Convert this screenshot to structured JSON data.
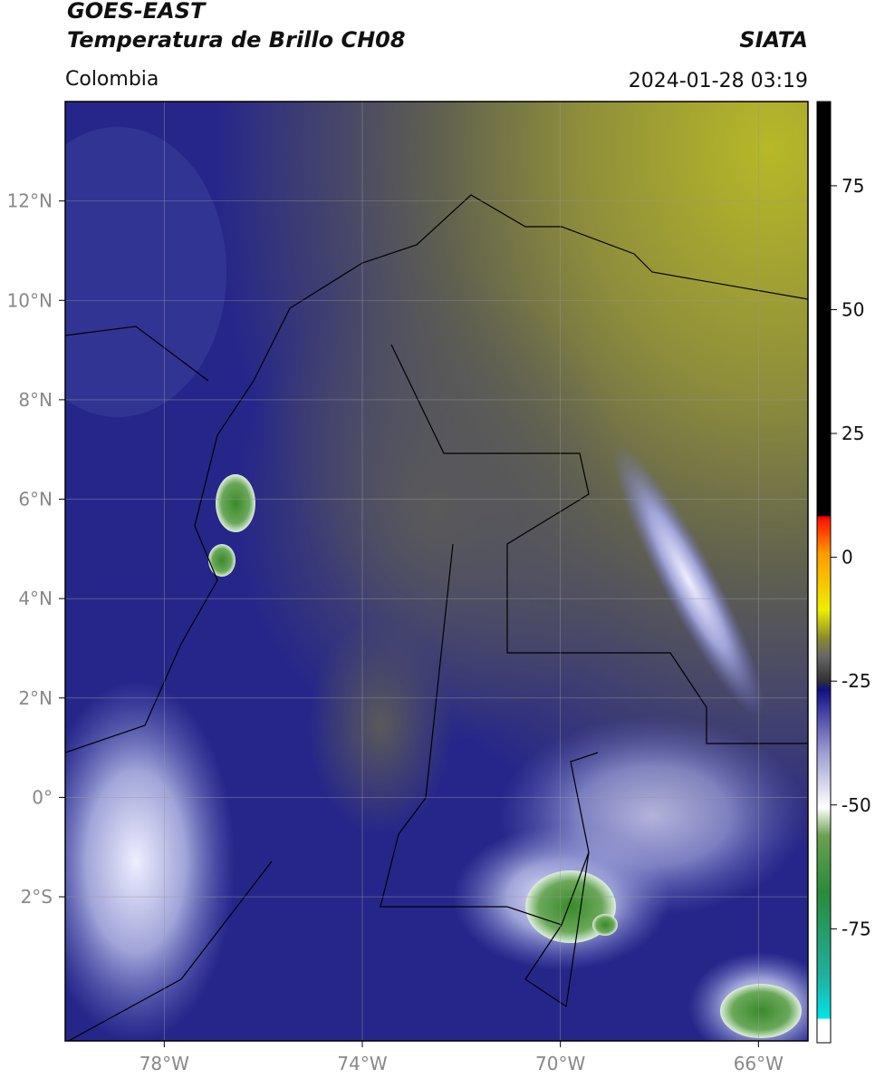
{
  "header": {
    "source": "GOES-EAST",
    "product": "Temperatura de Brillo CH08",
    "region": "Colombia",
    "org": "SIATA",
    "datetime": "2024-01-28 03:19"
  },
  "map": {
    "xlim": [
      -80,
      -65
    ],
    "ylim": [
      -4.9,
      14
    ],
    "xticks": [
      {
        "value": -78,
        "label": "78°W"
      },
      {
        "value": -74,
        "label": "74°W"
      },
      {
        "value": -70,
        "label": "70°W"
      },
      {
        "value": -66,
        "label": "66°W"
      }
    ],
    "yticks": [
      {
        "value": 12,
        "label": "12°N"
      },
      {
        "value": 10,
        "label": "10°N"
      },
      {
        "value": 8,
        "label": "8°N"
      },
      {
        "value": 6,
        "label": "6°N"
      },
      {
        "value": 4,
        "label": "4°N"
      },
      {
        "value": 2,
        "label": "2°N"
      },
      {
        "value": 0,
        "label": "0°"
      },
      {
        "value": -2,
        "label": "2°S"
      }
    ],
    "grid": true
  },
  "colorbar": {
    "ylim": [
      -98,
      92
    ],
    "yticks": [
      75,
      50,
      25,
      0,
      -25,
      -50,
      -75
    ]
  }
}
